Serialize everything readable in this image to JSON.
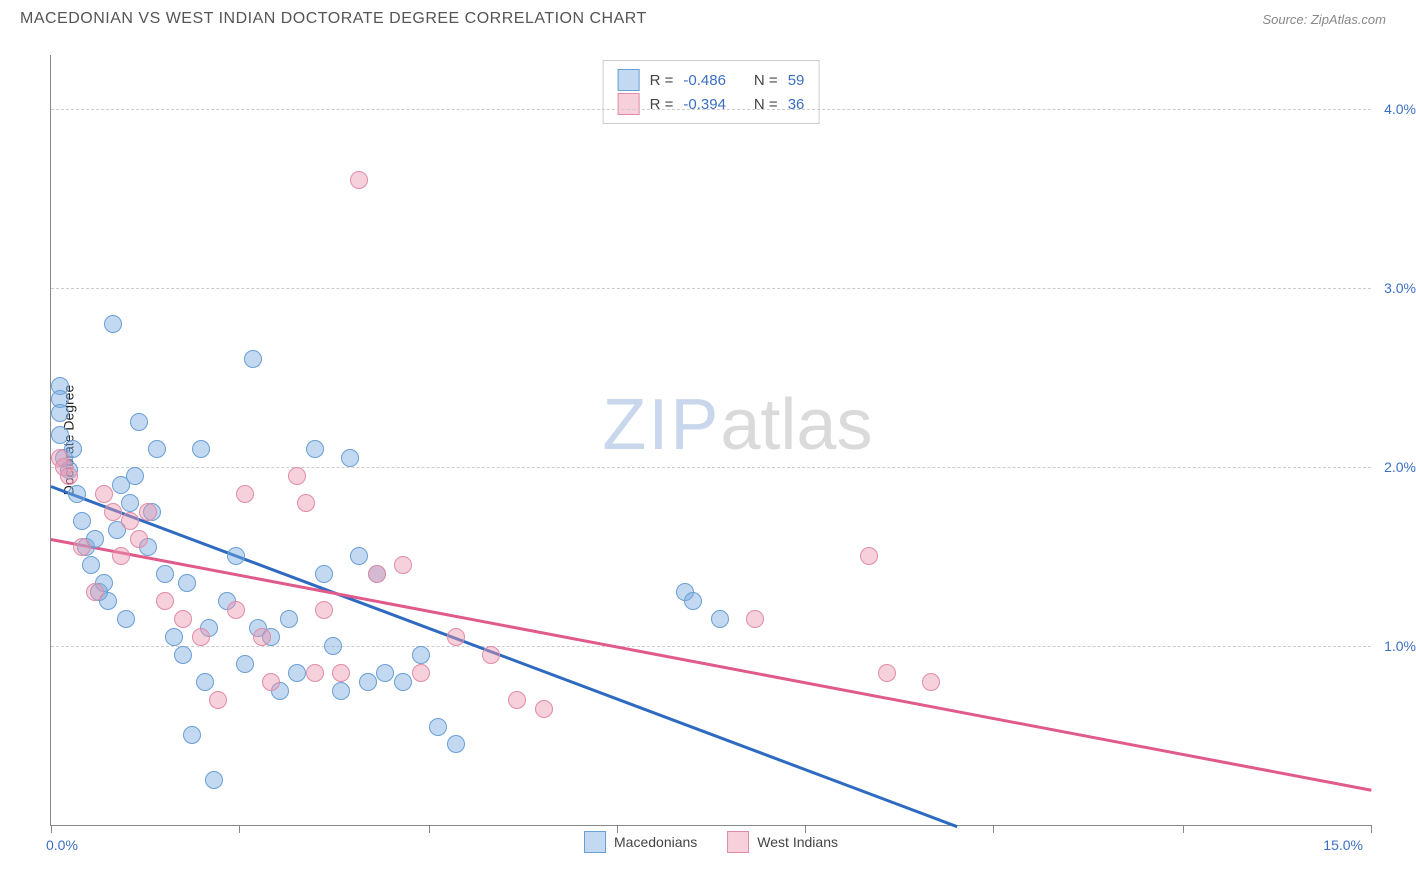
{
  "title": "MACEDONIAN VS WEST INDIAN DOCTORATE DEGREE CORRELATION CHART",
  "source_prefix": "Source: ",
  "source_name": "ZipAtlas.com",
  "yaxis_label": "Doctorate Degree",
  "watermark_bold": "ZIP",
  "watermark_light": "atlas",
  "chart": {
    "type": "scatter",
    "xlim": [
      0,
      15
    ],
    "ylim": [
      0,
      4.3
    ],
    "x_label_min": "0.0%",
    "x_label_max": "15.0%",
    "y_gridlines": [
      1.0,
      2.0,
      3.0,
      4.0
    ],
    "y_tick_labels": [
      "1.0%",
      "2.0%",
      "3.0%",
      "4.0%"
    ],
    "x_ticks": [
      0,
      2.14,
      4.29,
      6.43,
      8.57,
      10.71,
      12.86,
      15
    ],
    "background_color": "#ffffff",
    "grid_color": "#cccccc",
    "axis_color": "#888888",
    "label_color": "#3b6fc4",
    "marker_radius": 8,
    "series": [
      {
        "name": "Macedonians",
        "fill": "rgba(120,170,225,0.45)",
        "stroke": "#6a9fd4",
        "line_color": "#2e6bc0",
        "r_value": "-0.486",
        "n_value": "59",
        "regression": {
          "x1": 0,
          "y1": 1.9,
          "x2": 10.3,
          "y2": 0.0
        },
        "points": [
          [
            0.1,
            2.45
          ],
          [
            0.1,
            2.38
          ],
          [
            0.1,
            2.3
          ],
          [
            0.1,
            2.18
          ],
          [
            0.15,
            2.05
          ],
          [
            0.2,
            1.98
          ],
          [
            0.25,
            2.1
          ],
          [
            0.3,
            1.85
          ],
          [
            0.35,
            1.7
          ],
          [
            0.4,
            1.55
          ],
          [
            0.45,
            1.45
          ],
          [
            0.5,
            1.6
          ],
          [
            0.55,
            1.3
          ],
          [
            0.6,
            1.35
          ],
          [
            0.65,
            1.25
          ],
          [
            0.7,
            2.8
          ],
          [
            0.75,
            1.65
          ],
          [
            0.8,
            1.9
          ],
          [
            0.85,
            1.15
          ],
          [
            0.9,
            1.8
          ],
          [
            1.0,
            2.25
          ],
          [
            1.1,
            1.55
          ],
          [
            1.2,
            2.1
          ],
          [
            1.3,
            1.4
          ],
          [
            1.4,
            1.05
          ],
          [
            1.5,
            0.95
          ],
          [
            1.55,
            1.35
          ],
          [
            1.6,
            0.5
          ],
          [
            1.7,
            2.1
          ],
          [
            1.75,
            0.8
          ],
          [
            1.8,
            1.1
          ],
          [
            1.85,
            0.25
          ],
          [
            2.0,
            1.25
          ],
          [
            2.1,
            1.5
          ],
          [
            2.2,
            0.9
          ],
          [
            2.3,
            2.6
          ],
          [
            2.35,
            1.1
          ],
          [
            2.5,
            1.05
          ],
          [
            2.6,
            0.75
          ],
          [
            2.7,
            1.15
          ],
          [
            2.8,
            0.85
          ],
          [
            3.0,
            2.1
          ],
          [
            3.1,
            1.4
          ],
          [
            3.2,
            1.0
          ],
          [
            3.3,
            0.75
          ],
          [
            3.4,
            2.05
          ],
          [
            3.5,
            1.5
          ],
          [
            3.6,
            0.8
          ],
          [
            3.7,
            1.4
          ],
          [
            3.8,
            0.85
          ],
          [
            4.0,
            0.8
          ],
          [
            4.2,
            0.95
          ],
          [
            4.4,
            0.55
          ],
          [
            4.6,
            0.45
          ],
          [
            7.2,
            1.3
          ],
          [
            7.3,
            1.25
          ],
          [
            7.6,
            1.15
          ],
          [
            0.95,
            1.95
          ],
          [
            1.15,
            1.75
          ]
        ]
      },
      {
        "name": "West Indians",
        "fill": "rgba(235,150,175,0.45)",
        "stroke": "#e08ca8",
        "line_color": "#e05a8c",
        "r_value": "-0.394",
        "n_value": "36",
        "regression": {
          "x1": 0,
          "y1": 1.6,
          "x2": 15,
          "y2": 0.2
        },
        "points": [
          [
            0.1,
            2.05
          ],
          [
            0.15,
            2.0
          ],
          [
            0.2,
            1.95
          ],
          [
            0.35,
            1.55
          ],
          [
            0.5,
            1.3
          ],
          [
            0.7,
            1.75
          ],
          [
            0.8,
            1.5
          ],
          [
            0.9,
            1.7
          ],
          [
            1.0,
            1.6
          ],
          [
            1.1,
            1.75
          ],
          [
            1.3,
            1.25
          ],
          [
            1.5,
            1.15
          ],
          [
            1.7,
            1.05
          ],
          [
            1.9,
            0.7
          ],
          [
            2.1,
            1.2
          ],
          [
            2.2,
            1.85
          ],
          [
            2.4,
            1.05
          ],
          [
            2.5,
            0.8
          ],
          [
            2.8,
            1.95
          ],
          [
            2.9,
            1.8
          ],
          [
            3.0,
            0.85
          ],
          [
            3.1,
            1.2
          ],
          [
            3.3,
            0.85
          ],
          [
            3.5,
            3.6
          ],
          [
            3.7,
            1.4
          ],
          [
            4.0,
            1.45
          ],
          [
            4.2,
            0.85
          ],
          [
            4.6,
            1.05
          ],
          [
            5.0,
            0.95
          ],
          [
            5.3,
            0.7
          ],
          [
            5.6,
            0.65
          ],
          [
            8.0,
            1.15
          ],
          [
            9.3,
            1.5
          ],
          [
            9.5,
            0.85
          ],
          [
            10.0,
            0.8
          ],
          [
            0.6,
            1.85
          ]
        ]
      }
    ]
  },
  "legend_top_r_label": "R =",
  "legend_top_n_label": "N ="
}
